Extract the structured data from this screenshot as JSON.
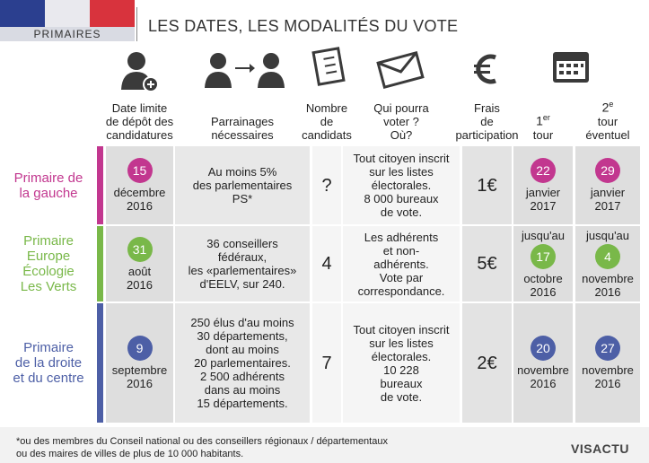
{
  "header": {
    "badge": "PRIMAIRES",
    "title": "LES DATES, LES MODALITÉS DU VOTE"
  },
  "columns": [
    {
      "lines": [
        "Date limite",
        "de dépôt des",
        "candidatures"
      ]
    },
    {
      "lines": [
        "Parrainages",
        "nécessaires"
      ]
    },
    {
      "lines": [
        "Nombre",
        "de candidats"
      ]
    },
    {
      "lines": [
        "Qui pourra",
        "voter ?",
        "Où?"
      ]
    },
    {
      "lines": [
        "Frais",
        "de",
        "participation"
      ]
    },
    {
      "number": "1",
      "suffix": "er",
      "lines": [
        "tour"
      ]
    },
    {
      "number": "2",
      "suffix": "e",
      "lines": [
        "tour",
        "éventuel"
      ]
    }
  ],
  "rows": [
    {
      "label": [
        "Primaire de",
        "la gauche"
      ],
      "color": "#c2378f",
      "deadline": {
        "day": "15",
        "lines": [
          "décembre",
          "2016"
        ]
      },
      "sponsors": [
        "Au moins 5%",
        "des parlementaires",
        "PS*"
      ],
      "candidates": "?",
      "voters": [
        "Tout citoyen inscrit",
        "sur les listes",
        "électorales.",
        "8 000 bureaux",
        "de vote."
      ],
      "fee": "1€",
      "round1": {
        "day": "22",
        "lines": [
          "janvier",
          "2017"
        ]
      },
      "round2": {
        "day": "29",
        "lines": [
          "janvier",
          "2017"
        ]
      }
    },
    {
      "label": [
        "Primaire",
        "Europe",
        "Écologie",
        "Les Verts"
      ],
      "color": "#79b849",
      "deadline": {
        "day": "31",
        "lines": [
          "août",
          "2016"
        ]
      },
      "sponsors": [
        "36 conseillers",
        "fédéraux,",
        "les «parlementaires»",
        "d'EELV, sur 240."
      ],
      "candidates": "4",
      "voters": [
        "Les adhérents",
        "et non-",
        "adhérents.",
        "Vote par",
        "correspondance."
      ],
      "fee": "5€",
      "round1": {
        "prefix": "jusqu'au",
        "day": "17",
        "lines": [
          "octobre",
          "2016"
        ]
      },
      "round2": {
        "prefix": "jusqu'au",
        "day": "4",
        "lines": [
          "novembre",
          "2016"
        ]
      }
    },
    {
      "label": [
        "Primaire",
        "de la droite",
        "et du centre"
      ],
      "color": "#4d5fa6",
      "deadline": {
        "day": "9",
        "lines": [
          "septembre",
          "2016"
        ]
      },
      "sponsors": [
        "250 élus d'au moins",
        "30 départements,",
        "dont au moins",
        "20 parlementaires.",
        "2 500 adhérents",
        "dans au moins",
        "15 départements."
      ],
      "candidates": "7",
      "voters": [
        "Tout citoyen inscrit",
        "sur les listes",
        "électorales.",
        "10 228",
        "bureaux",
        "de vote."
      ],
      "fee": "2€",
      "round1": {
        "day": "20",
        "lines": [
          "novembre",
          "2016"
        ]
      },
      "round2": {
        "day": "27",
        "lines": [
          "novembre",
          "2016"
        ]
      }
    }
  ],
  "footer": {
    "note": [
      "*ou des membres du Conseil national ou des conseillers régionaux / départementaux",
      "ou des maires de villes de plus de 10 000 habitants."
    ],
    "logo": "VISACTU"
  }
}
